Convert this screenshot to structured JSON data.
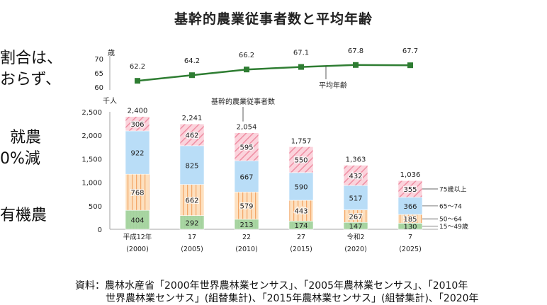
{
  "title": "基幹的農業従事者数と平均年齢",
  "side_text": [
    "割合は、",
    "おらず、",
    "就農",
    "0%減",
    "有機農"
  ],
  "source_lines": [
    "資料：農林水産省「2000年世界農林業センサス」、「2005年農林業センサス」、「2010年",
    "世界農林業センサス」(組替集計)、「2015年農林業センサス」(組替集計)、「2020年"
  ],
  "colors": {
    "age_15_49": "#a8d5a2",
    "age_50_64": "#f7c28c",
    "age_65_74": "#b9ddf7",
    "age_75_plus": "#f4a3b4",
    "line": "#2e7d32"
  },
  "chart_data": [
    {
      "type": "line",
      "ylabel": "歳",
      "y_ticks": [
        "70",
        "65",
        "60"
      ],
      "ylim": [
        60,
        70
      ],
      "series_label": "平均年齢",
      "x": [
        "平成12年\n(2000)",
        "17\n(2005)",
        "22\n(2010)",
        "27\n(2015)",
        "令和2\n(2020)",
        "7\n(2025)"
      ],
      "values": [
        62.2,
        64.2,
        66.2,
        67.1,
        67.8,
        67.7
      ],
      "value_labels": [
        "62.2",
        "64.2",
        "66.2",
        "67.1",
        "67.8",
        "67.7"
      ]
    },
    {
      "type": "bar",
      "stacked": true,
      "ylabel": "千人",
      "annotation": "基幹的農業従事者数",
      "ylim": [
        0,
        2500
      ],
      "y_ticks": [
        0,
        500,
        1000,
        1500,
        2000,
        2500
      ],
      "y_tick_labels": [
        "0",
        "500",
        "1,000",
        "1,500",
        "2,000",
        "2,500"
      ],
      "categories": [
        "平成12年",
        "17",
        "22",
        "27",
        "令和2",
        "7"
      ],
      "category_years": [
        "(2000)",
        "(2005)",
        "(2010)",
        "(2015)",
        "(2020)",
        "(2025)"
      ],
      "totals": [
        2400,
        2241,
        2054,
        1757,
        1363,
        1036
      ],
      "total_labels": [
        "2,400",
        "2,241",
        "2,054",
        "1,757",
        "1,363",
        "1,036"
      ],
      "series": [
        {
          "name": "15～49歳",
          "values": [
            404,
            292,
            213,
            174,
            147,
            130
          ]
        },
        {
          "name": "50～64",
          "values": [
            768,
            662,
            579,
            443,
            267,
            185
          ]
        },
        {
          "name": "65～74",
          "values": [
            922,
            825,
            667,
            590,
            517,
            366
          ]
        },
        {
          "name": "75歳以上",
          "values": [
            306,
            462,
            595,
            550,
            432,
            355
          ]
        }
      ]
    }
  ]
}
